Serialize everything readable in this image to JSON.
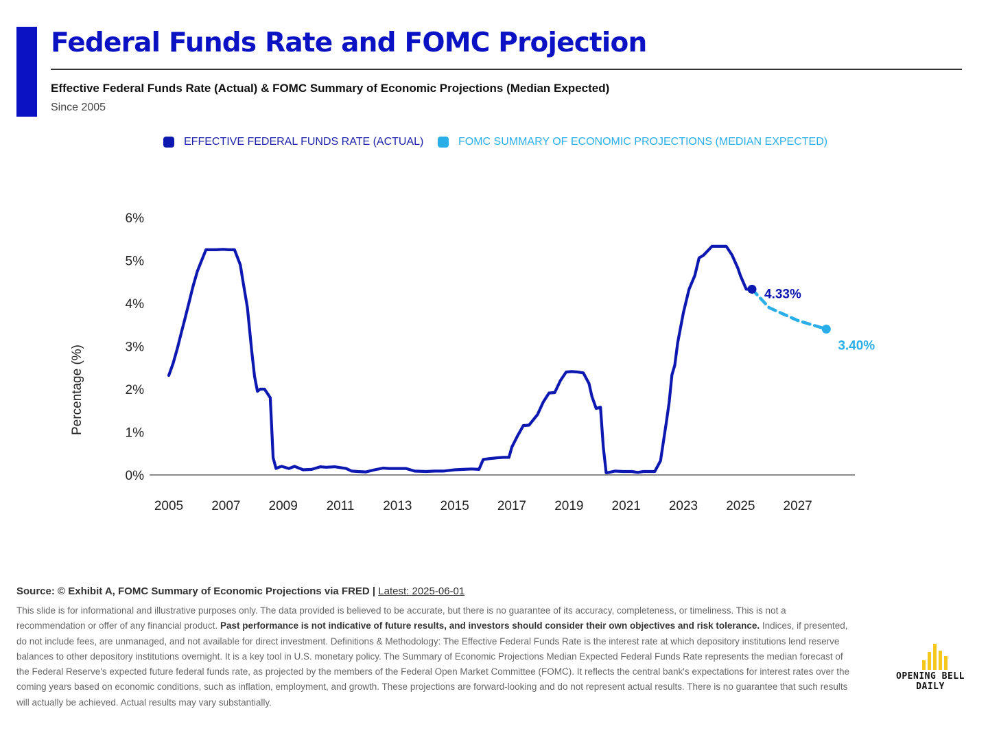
{
  "header": {
    "title": "Federal Funds Rate and FOMC Projection",
    "subtitle": "Effective Federal Funds Rate (Actual) & FOMC Summary of Economic Projections (Median Expected)",
    "since": "Since 2005"
  },
  "colors": {
    "brand": "#0a12c4",
    "actual": "#0c18b0",
    "projection": "#29aee8"
  },
  "legend": {
    "actual": "EFFECTIVE FEDERAL FUNDS RATE (ACTUAL)",
    "projection": "FOMC SUMMARY OF ECONOMIC PROJECTIONS (MEDIAN EXPECTED)"
  },
  "chart_data": {
    "type": "line",
    "ylabel": "Percentage (%)",
    "ylim": [
      0,
      6
    ],
    "xlim": [
      2005,
      2029.0
    ],
    "y_ticks": [
      "0%",
      "1%",
      "2%",
      "3%",
      "4%",
      "5%",
      "6%"
    ],
    "x_ticks": [
      "2005",
      "2007",
      "2009",
      "2011",
      "2013",
      "2015",
      "2017",
      "2019",
      "2021",
      "2023",
      "2025",
      "2027"
    ],
    "grid": false,
    "legend_position": "top",
    "series": [
      {
        "name": "EFFECTIVE FEDERAL FUNDS RATE (ACTUAL)",
        "x": [
          2005.0,
          2005.15,
          2005.3,
          2005.45,
          2005.55,
          2005.7,
          2005.85,
          2006.0,
          2006.15,
          2006.3,
          2006.45,
          2006.55,
          2006.65,
          2006.9,
          2007.1,
          2007.3,
          2007.5,
          2007.6,
          2007.75,
          2007.9,
          2008.0,
          2008.1,
          2008.2,
          2008.35,
          2008.55,
          2008.65,
          2008.75,
          2008.85,
          2008.95,
          2009.2,
          2009.4,
          2009.7,
          2010.0,
          2010.3,
          2010.5,
          2010.8,
          2011.2,
          2011.4,
          2011.6,
          2011.9,
          2012.2,
          2012.5,
          2012.7,
          2013.0,
          2013.3,
          2013.6,
          2014.0,
          2014.3,
          2014.6,
          2015.0,
          2015.3,
          2015.6,
          2015.85,
          2016.0,
          2016.2,
          2016.5,
          2016.7,
          2016.9,
          2017.0,
          2017.2,
          2017.4,
          2017.6,
          2017.9,
          2018.1,
          2018.3,
          2018.5,
          2018.7,
          2018.9,
          2019.1,
          2019.3,
          2019.5,
          2019.7,
          2019.8,
          2019.95,
          2020.1,
          2020.2,
          2020.3,
          2020.4,
          2020.6,
          2020.9,
          2021.2,
          2021.4,
          2021.6,
          2021.8,
          2022.0,
          2022.2,
          2022.4,
          2022.5,
          2022.6,
          2022.7,
          2022.8,
          2023.0,
          2023.2,
          2023.4,
          2023.55,
          2023.7,
          2024.0,
          2024.5,
          2024.7,
          2024.9,
          2025.0,
          2025.2,
          2025.4
        ],
        "values": [
          2.32,
          2.6,
          2.95,
          3.35,
          3.6,
          4.0,
          4.4,
          4.75,
          5.0,
          5.25,
          5.25,
          5.25,
          5.25,
          5.26,
          5.25,
          5.25,
          4.9,
          4.5,
          3.9,
          2.9,
          2.3,
          1.95,
          2.0,
          2.0,
          1.8,
          0.4,
          0.15,
          0.18,
          0.2,
          0.15,
          0.2,
          0.12,
          0.13,
          0.19,
          0.18,
          0.19,
          0.15,
          0.09,
          0.08,
          0.07,
          0.12,
          0.16,
          0.15,
          0.15,
          0.15,
          0.09,
          0.08,
          0.09,
          0.09,
          0.12,
          0.13,
          0.14,
          0.13,
          0.36,
          0.38,
          0.4,
          0.41,
          0.41,
          0.65,
          0.91,
          1.15,
          1.16,
          1.41,
          1.7,
          1.91,
          1.92,
          2.2,
          2.4,
          2.41,
          2.4,
          2.38,
          2.13,
          1.83,
          1.55,
          1.58,
          0.65,
          0.05,
          0.06,
          0.09,
          0.08,
          0.08,
          0.06,
          0.08,
          0.08,
          0.08,
          0.33,
          1.21,
          1.68,
          2.33,
          2.56,
          3.08,
          3.78,
          4.33,
          4.65,
          5.06,
          5.12,
          5.33,
          5.33,
          5.13,
          4.83,
          4.64,
          4.33,
          4.33
        ],
        "end_label": "4.33%"
      },
      {
        "name": "FOMC SUMMARY OF ECONOMIC PROJECTIONS (MEDIAN EXPECTED)",
        "x": [
          2025.4,
          2026.0,
          2027.0,
          2028.0
        ],
        "values": [
          4.33,
          3.9,
          3.6,
          3.4
        ],
        "end_label": "3.40%"
      }
    ]
  },
  "footer": {
    "source": "Source: © Exhibit A, FOMC Summary of Economic Projections via FRED |",
    "latest": "Latest: 2025-06-01",
    "disclaimer_1": "This slide is for informational and illustrative purposes only. The data provided is believed to be accurate, but there is no guarantee of its accuracy, completeness, or timeliness. This is not a recommendation or offer of any financial product.",
    "disclaimer_bold": "Past performance is not indicative of future results, and investors should consider their own objectives and risk tolerance.",
    "disclaimer_2": "Indices, if presented, do not include fees, are unmanaged, and not available for direct investment. Definitions & Methodology: The Effective Federal Funds Rate is the interest rate at which depository institutions lend reserve balances to other depository institutions overnight. It is a key tool in U.S. monetary policy. The Summary of Economic Projections Median Expected Federal Funds Rate represents the median forecast of the Federal Reserve's expected future federal funds rate, as projected by the members of the Federal Open Market Committee (FOMC). It reflects the central bank's expectations for interest rates over the coming years based on economic conditions, such as inflation, employment, and growth. These projections are forward-looking and do not represent actual results. There is no guarantee that such results will actually be achieved. Actual results may vary substantially."
  },
  "logo": {
    "line1": "OPENING BELL",
    "line2": "DAILY",
    "bar_color": "#f7c81c"
  }
}
